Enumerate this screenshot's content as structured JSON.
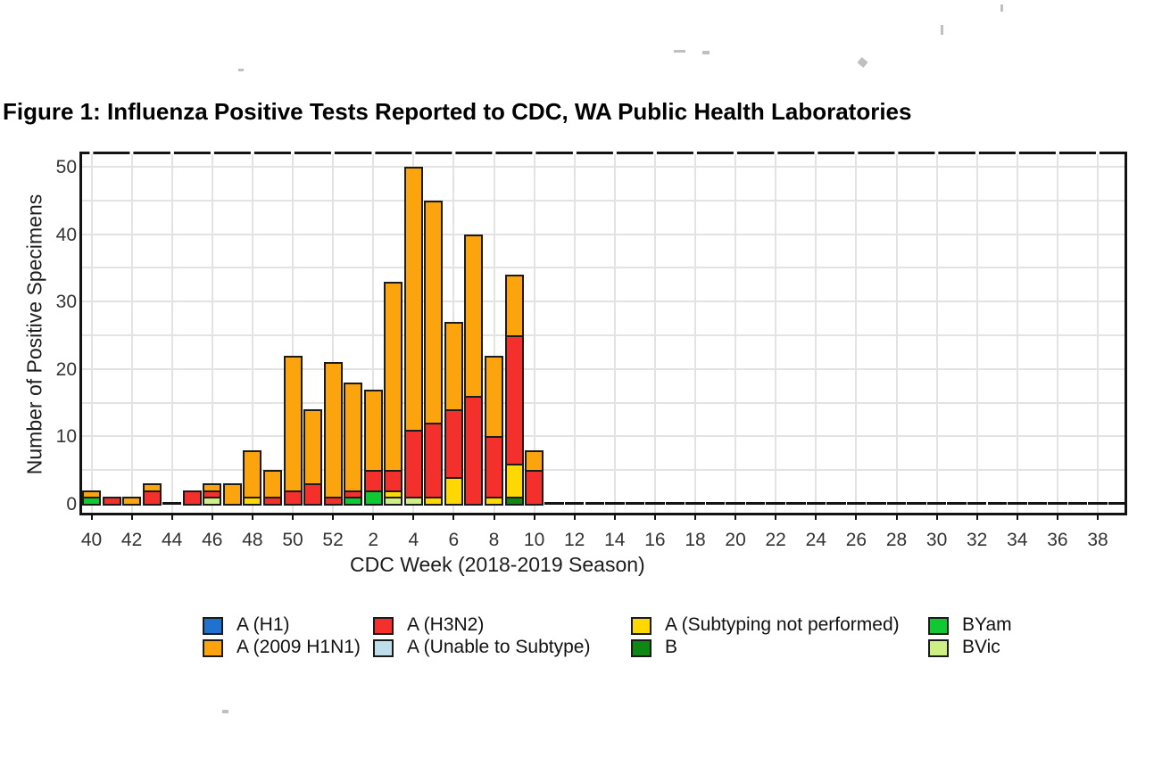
{
  "figure_title": "Figure 1: Influenza Positive Tests Reported to CDC, WA Public Health Laboratories",
  "chart_data": {
    "type": "bar",
    "stacked": true,
    "title": "Figure 1: Influenza Positive Tests Reported to CDC, WA Public Health Laboratories",
    "xlabel": "CDC Week (2018-2019 Season)",
    "ylabel": "Number of Positive Specimens",
    "ylim": [
      0,
      54
    ],
    "yticks": [
      0,
      10,
      20,
      30,
      40,
      50
    ],
    "y_minor_grid_step": 5,
    "x_tick_step": 2,
    "grid": true,
    "legend_position": "bottom",
    "types": {
      "h1": {
        "label": "A (H1)",
        "color": "#1f72d0"
      },
      "h1n1": {
        "label": "A (2009 H1N1)",
        "color": "#fca40d"
      },
      "h3n2": {
        "label": "A (H3N2)",
        "color": "#f4302d"
      },
      "unable": {
        "label": "A (Unable to Subtype)",
        "color": "#bedfe9"
      },
      "asnp": {
        "label": "A (Subtyping not performed)",
        "color": "#fed800"
      },
      "b": {
        "label": "B",
        "color": "#0f8714"
      },
      "byam": {
        "label": "BYam",
        "color": "#10c831"
      },
      "bvic": {
        "label": "BVic",
        "color": "#cdef83"
      }
    },
    "legend_rows": [
      [
        "h1",
        "h3n2",
        "asnp",
        "byam"
      ],
      [
        "h1n1",
        "unable",
        "b",
        "bvic"
      ]
    ],
    "bars": [
      {
        "week": "40",
        "segments": [
          [
            "byam",
            1
          ],
          [
            "h1n1",
            1
          ]
        ]
      },
      {
        "week": "41",
        "segments": [
          [
            "h3n2",
            1
          ]
        ]
      },
      {
        "week": "42",
        "segments": [
          [
            "h1n1",
            1
          ]
        ]
      },
      {
        "week": "43",
        "segments": [
          [
            "h3n2",
            2
          ],
          [
            "h1n1",
            1
          ]
        ]
      },
      {
        "week": "44",
        "segments": []
      },
      {
        "week": "45",
        "segments": [
          [
            "h3n2",
            2
          ]
        ]
      },
      {
        "week": "46",
        "segments": [
          [
            "bvic",
            1
          ],
          [
            "h3n2",
            1
          ],
          [
            "h1n1",
            1
          ]
        ]
      },
      {
        "week": "47",
        "segments": [
          [
            "h1n1",
            3
          ]
        ]
      },
      {
        "week": "48",
        "segments": [
          [
            "asnp",
            1
          ],
          [
            "h1n1",
            7
          ]
        ]
      },
      {
        "week": "49",
        "segments": [
          [
            "h3n2",
            1
          ],
          [
            "h1n1",
            4
          ]
        ]
      },
      {
        "week": "50",
        "segments": [
          [
            "h3n2",
            2
          ],
          [
            "h1n1",
            20
          ]
        ]
      },
      {
        "week": "51",
        "segments": [
          [
            "h3n2",
            3
          ],
          [
            "h1n1",
            11
          ]
        ]
      },
      {
        "week": "52",
        "segments": [
          [
            "h3n2",
            1
          ],
          [
            "h1n1",
            20
          ]
        ]
      },
      {
        "week": "1",
        "segments": [
          [
            "byam",
            1
          ],
          [
            "h3n2",
            1
          ],
          [
            "h1n1",
            16
          ]
        ]
      },
      {
        "week": "2",
        "segments": [
          [
            "byam",
            2
          ],
          [
            "h3n2",
            3
          ],
          [
            "h1n1",
            12
          ]
        ]
      },
      {
        "week": "3",
        "segments": [
          [
            "bvic",
            1
          ],
          [
            "asnp",
            1
          ],
          [
            "h3n2",
            3
          ],
          [
            "h1n1",
            28
          ]
        ]
      },
      {
        "week": "4",
        "segments": [
          [
            "bvic",
            1
          ],
          [
            "h3n2",
            10
          ],
          [
            "h1n1",
            39
          ]
        ]
      },
      {
        "week": "5",
        "segments": [
          [
            "asnp",
            1
          ],
          [
            "h3n2",
            11
          ],
          [
            "h1n1",
            33
          ]
        ]
      },
      {
        "week": "6",
        "segments": [
          [
            "asnp",
            4
          ],
          [
            "h3n2",
            10
          ],
          [
            "h1n1",
            13
          ]
        ]
      },
      {
        "week": "7",
        "segments": [
          [
            "h3n2",
            16
          ],
          [
            "h1n1",
            24
          ]
        ]
      },
      {
        "week": "8",
        "segments": [
          [
            "asnp",
            1
          ],
          [
            "h3n2",
            9
          ],
          [
            "h1n1",
            12
          ]
        ]
      },
      {
        "week": "9",
        "segments": [
          [
            "b",
            1
          ],
          [
            "asnp",
            5
          ],
          [
            "h3n2",
            19
          ],
          [
            "h1n1",
            9
          ]
        ]
      },
      {
        "week": "10",
        "segments": [
          [
            "h3n2",
            5
          ],
          [
            "h1n1",
            3
          ]
        ]
      },
      {
        "week": "11",
        "segments": []
      },
      {
        "week": "12",
        "segments": []
      },
      {
        "week": "13",
        "segments": []
      },
      {
        "week": "14",
        "segments": []
      },
      {
        "week": "15",
        "segments": []
      },
      {
        "week": "16",
        "segments": []
      },
      {
        "week": "17",
        "segments": []
      },
      {
        "week": "18",
        "segments": []
      },
      {
        "week": "19",
        "segments": []
      },
      {
        "week": "20",
        "segments": []
      },
      {
        "week": "21",
        "segments": []
      },
      {
        "week": "22",
        "segments": []
      },
      {
        "week": "23",
        "segments": []
      },
      {
        "week": "24",
        "segments": []
      },
      {
        "week": "25",
        "segments": []
      },
      {
        "week": "26",
        "segments": []
      },
      {
        "week": "27",
        "segments": []
      },
      {
        "week": "28",
        "segments": []
      },
      {
        "week": "29",
        "segments": []
      },
      {
        "week": "30",
        "segments": []
      },
      {
        "week": "31",
        "segments": []
      },
      {
        "week": "32",
        "segments": []
      },
      {
        "week": "33",
        "segments": []
      },
      {
        "week": "34",
        "segments": []
      },
      {
        "week": "35",
        "segments": []
      },
      {
        "week": "36",
        "segments": []
      },
      {
        "week": "37",
        "segments": []
      },
      {
        "week": "38",
        "segments": []
      },
      {
        "week": "39",
        "segments": []
      }
    ]
  }
}
